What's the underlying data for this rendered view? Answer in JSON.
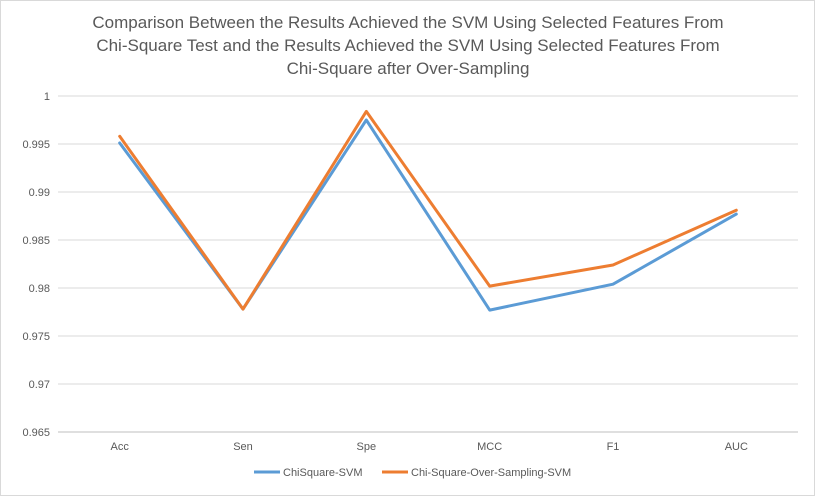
{
  "chart_data": {
    "type": "line",
    "title_lines": [
      "Comparison Between the Results Achieved the SVM Using Selected Features From",
      "Chi-Square Test and the Results Achieved the SVM Using Selected Features From",
      "Chi-Square after Over-Sampling"
    ],
    "categories": [
      "Acc",
      "Sen",
      "Spe",
      "MCC",
      "F1",
      "AUC"
    ],
    "ylim": [
      0.965,
      1
    ],
    "yticks": [
      "1",
      "0.995",
      "0.99",
      "0.985",
      "0.98",
      "0.975",
      "0.97",
      "0.965"
    ],
    "grid": true,
    "legend_position": "bottom",
    "series": [
      {
        "name": "ChiSquare-SVM",
        "color": "#5b9bd5",
        "values": [
          0.9951,
          0.9778,
          0.9975,
          0.9777,
          0.9804,
          0.9877
        ]
      },
      {
        "name": "Chi-Square-Over-Sampling-SVM",
        "color": "#ed7d31",
        "values": [
          0.9958,
          0.9778,
          0.9984,
          0.9802,
          0.9824,
          0.9881
        ]
      }
    ]
  }
}
